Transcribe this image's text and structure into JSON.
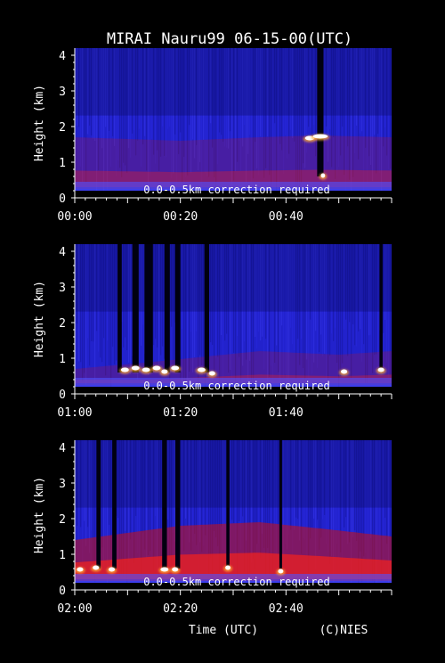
{
  "chart_data": {
    "type": "heatmap",
    "title": "MIRAI Nauru99 06-15-00(UTC)",
    "xlabel": "Time (UTC)",
    "credit": "(C)NIES",
    "colors": {
      "background": "#000000",
      "clear_air": "#2222cc",
      "aerosol": "#cc1111",
      "cloud": "#ffffff"
    },
    "panels": [
      {
        "ylabel": "Height (km)",
        "ylim": [
          0,
          4.2
        ],
        "yticks": [
          "0",
          "1",
          "2",
          "3",
          "4"
        ],
        "xlim_minutes": [
          0,
          60
        ],
        "xticks": [
          {
            "label": "00:00",
            "minute": 0
          },
          {
            "label": "00:20",
            "minute": 20
          },
          {
            "label": "00:40",
            "minute": 40
          }
        ],
        "note": "0.0-0.5km correction required",
        "boundary_layer": [
          {
            "minute": 0,
            "top_km": 1.7
          },
          {
            "minute": 20,
            "top_km": 1.6
          },
          {
            "minute": 35,
            "top_km": 1.7
          },
          {
            "minute": 46,
            "top_km": 1.75
          },
          {
            "minute": 60,
            "top_km": 1.7
          }
        ],
        "clouds": [
          {
            "minute": 44.5,
            "height_km": 1.65,
            "width_min": 1.8
          },
          {
            "minute": 46.5,
            "height_km": 1.7,
            "width_min": 2.8
          },
          {
            "minute": 47,
            "height_km": 0.6,
            "width_min": 0.8
          }
        ],
        "attenuated_columns": [
          {
            "minute": 46.5,
            "width_min": 1.2
          }
        ]
      },
      {
        "ylabel": "Height (km)",
        "ylim": [
          0,
          4.2
        ],
        "yticks": [
          "0",
          "1",
          "2",
          "3",
          "4"
        ],
        "xlim_minutes": [
          60,
          120
        ],
        "xticks": [
          {
            "label": "01:00",
            "minute": 60
          },
          {
            "label": "01:20",
            "minute": 80
          },
          {
            "label": "01:40",
            "minute": 100
          }
        ],
        "note": "0.0-0.5km correction required",
        "boundary_layer": [
          {
            "minute": 60,
            "top_km": 0.7
          },
          {
            "minute": 75,
            "top_km": 0.9
          },
          {
            "minute": 95,
            "top_km": 1.2
          },
          {
            "minute": 110,
            "top_km": 1.1
          },
          {
            "minute": 120,
            "top_km": 1.2
          }
        ],
        "clouds": [
          {
            "minute": 69.5,
            "height_km": 0.65,
            "width_min": 1.5
          },
          {
            "minute": 71.5,
            "height_km": 0.7,
            "width_min": 1.5
          },
          {
            "minute": 73.5,
            "height_km": 0.65,
            "width_min": 1.5
          },
          {
            "minute": 75.5,
            "height_km": 0.7,
            "width_min": 1.5
          },
          {
            "minute": 77,
            "height_km": 0.6,
            "width_min": 1.2
          },
          {
            "minute": 79,
            "height_km": 0.7,
            "width_min": 1.5
          },
          {
            "minute": 84,
            "height_km": 0.65,
            "width_min": 1.5
          },
          {
            "minute": 86,
            "height_km": 0.55,
            "width_min": 1.2
          },
          {
            "minute": 111,
            "height_km": 0.6,
            "width_min": 1.2
          },
          {
            "minute": 118,
            "height_km": 0.65,
            "width_min": 1.2
          }
        ],
        "attenuated_columns": [
          {
            "minute": 68.5,
            "width_min": 0.8
          },
          {
            "minute": 71.5,
            "width_min": 1.2
          },
          {
            "minute": 74,
            "width_min": 1.6
          },
          {
            "minute": 77.5,
            "width_min": 1.0
          },
          {
            "minute": 79.5,
            "width_min": 1.0
          },
          {
            "minute": 85,
            "width_min": 0.9
          },
          {
            "minute": 118,
            "width_min": 0.6
          }
        ]
      },
      {
        "ylabel": "Height (km)",
        "ylim": [
          0,
          4.2
        ],
        "yticks": [
          "0",
          "1",
          "2",
          "3",
          "4"
        ],
        "xlim_minutes": [
          120,
          180
        ],
        "xticks": [
          {
            "label": "02:00",
            "minute": 120
          },
          {
            "label": "02:20",
            "minute": 140
          },
          {
            "label": "02:40",
            "minute": 160
          }
        ],
        "note": "0.0-0.5km correction required",
        "boundary_layer": [
          {
            "minute": 120,
            "top_km": 1.4
          },
          {
            "minute": 140,
            "top_km": 1.8
          },
          {
            "minute": 155,
            "top_km": 1.9
          },
          {
            "minute": 168,
            "top_km": 1.7
          },
          {
            "minute": 180,
            "top_km": 1.5
          }
        ],
        "clouds": [
          {
            "minute": 121,
            "height_km": 0.55,
            "width_min": 1.2
          },
          {
            "minute": 124,
            "height_km": 0.6,
            "width_min": 1.2
          },
          {
            "minute": 127,
            "height_km": 0.55,
            "width_min": 1.2
          },
          {
            "minute": 137,
            "height_km": 0.55,
            "width_min": 1.5
          },
          {
            "minute": 139,
            "height_km": 0.55,
            "width_min": 1.2
          },
          {
            "minute": 149,
            "height_km": 0.6,
            "width_min": 1.0
          },
          {
            "minute": 159,
            "height_km": 0.5,
            "width_min": 1.0
          }
        ],
        "attenuated_columns": [
          {
            "minute": 124.5,
            "width_min": 0.8
          },
          {
            "minute": 127.5,
            "width_min": 0.8
          },
          {
            "minute": 137,
            "width_min": 0.9
          },
          {
            "minute": 139.5,
            "width_min": 0.9
          },
          {
            "minute": 149,
            "width_min": 0.6
          },
          {
            "minute": 159,
            "width_min": 0.5
          }
        ]
      }
    ]
  }
}
